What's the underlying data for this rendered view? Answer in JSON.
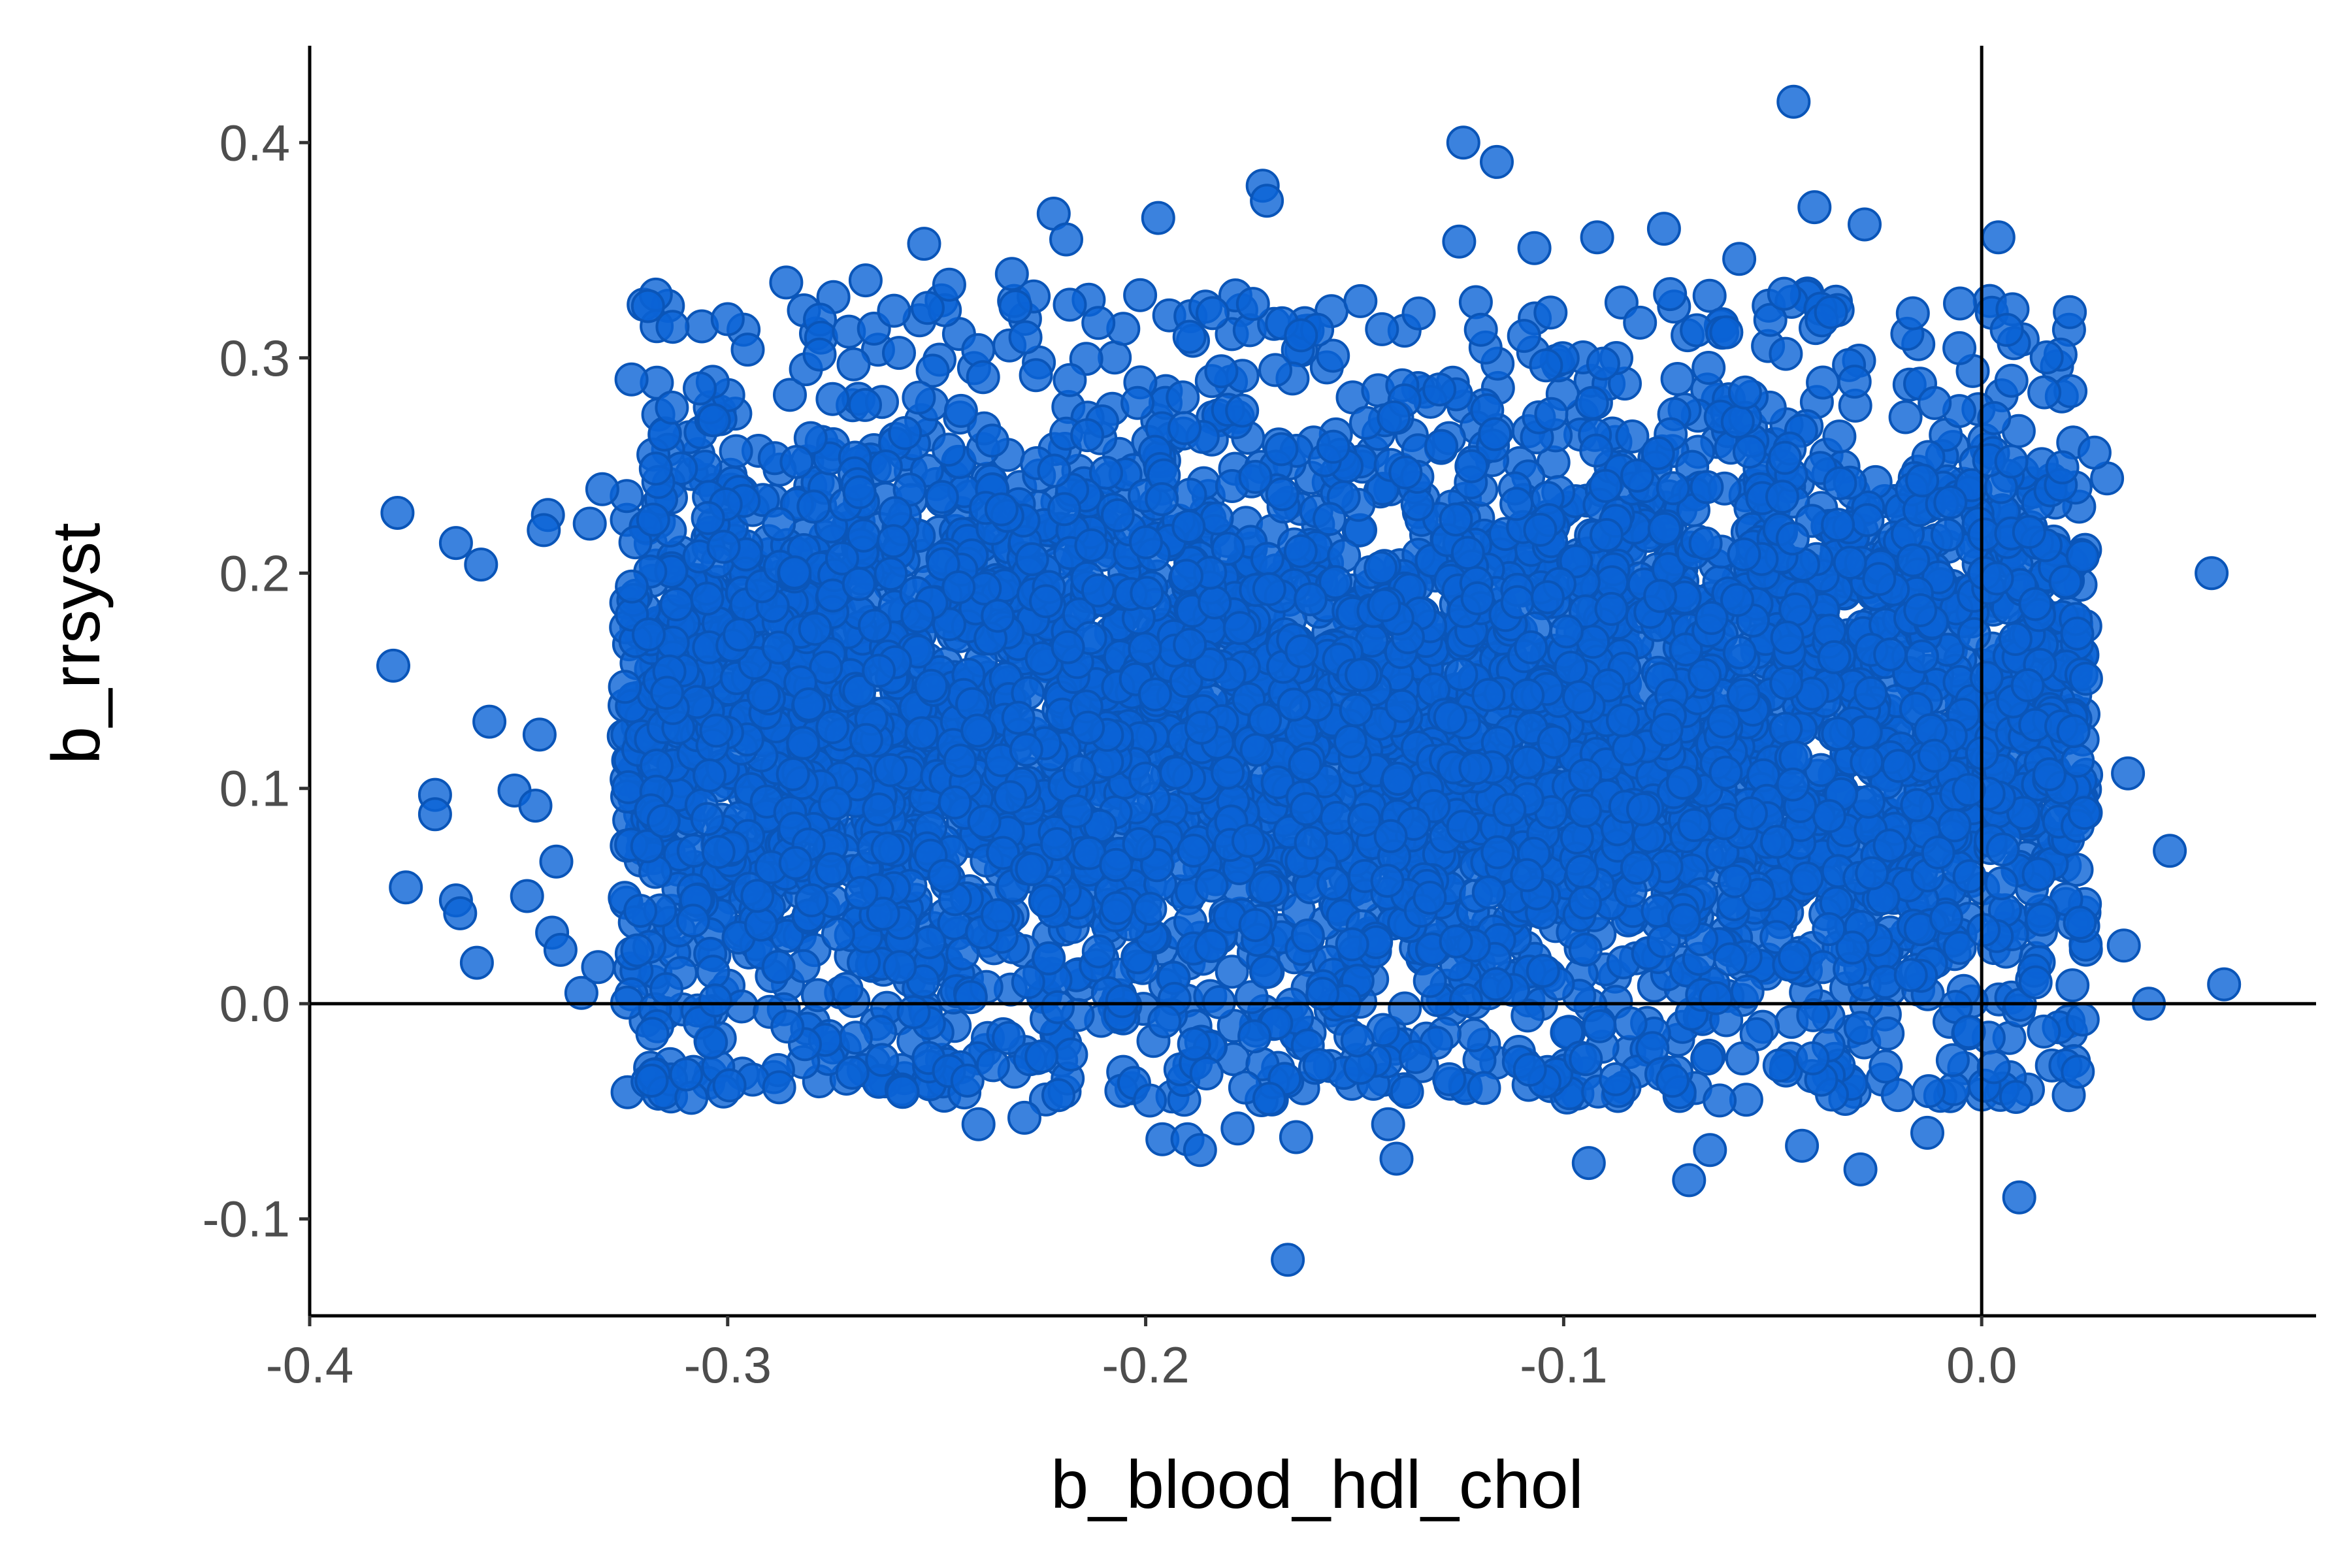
{
  "chart_data": {
    "type": "scatter",
    "xlabel": "b_blood_hdl_chol",
    "ylabel": "b_rrsyst",
    "xlim": [
      -0.4,
      0.08
    ],
    "ylim": [
      -0.145,
      0.445
    ],
    "x_ticks": [
      -0.4,
      -0.3,
      -0.2,
      -0.1,
      0.0
    ],
    "x_tick_labels": [
      "-0.4",
      "-0.3",
      "-0.2",
      "-0.1",
      "0.0"
    ],
    "y_ticks": [
      -0.1,
      0.0,
      0.1,
      0.2,
      0.3,
      0.4
    ],
    "y_tick_labels": [
      "-0.1",
      "0.0",
      "0.1",
      "0.2",
      "0.3",
      "0.4"
    ],
    "reference_lines": {
      "x": 0.0,
      "y": 0.0
    },
    "grid": false,
    "legend": "none",
    "colors": {
      "point_fill": "#0a63d6",
      "point_stroke": "#0a55b8",
      "axis": "#000000"
    },
    "cloud": {
      "n_points": 5000,
      "x_range": [
        -0.325,
        0.025
      ],
      "x_mean": -0.13,
      "y_mean": 0.13,
      "y_sd": 0.085,
      "y_range": [
        -0.045,
        0.33
      ]
    },
    "points": [
      {
        "x": -0.045,
        "y": 0.419
      },
      {
        "x": -0.124,
        "y": 0.4
      },
      {
        "x": -0.116,
        "y": 0.391
      },
      {
        "x": -0.172,
        "y": 0.38
      },
      {
        "x": -0.171,
        "y": 0.373
      },
      {
        "x": -0.04,
        "y": 0.37
      },
      {
        "x": -0.197,
        "y": 0.365
      },
      {
        "x": -0.222,
        "y": 0.367
      },
      {
        "x": -0.028,
        "y": 0.362
      },
      {
        "x": -0.076,
        "y": 0.36
      },
      {
        "x": -0.092,
        "y": 0.356
      },
      {
        "x": -0.219,
        "y": 0.355
      },
      {
        "x": -0.125,
        "y": 0.354
      },
      {
        "x": 0.004,
        "y": 0.356
      },
      {
        "x": -0.253,
        "y": 0.353
      },
      {
        "x": -0.107,
        "y": 0.351
      },
      {
        "x": -0.058,
        "y": 0.346
      },
      {
        "x": -0.286,
        "y": 0.335
      },
      {
        "x": -0.267,
        "y": 0.336
      },
      {
        "x": -0.247,
        "y": 0.334
      },
      {
        "x": -0.232,
        "y": 0.339
      },
      {
        "x": -0.3,
        "y": 0.318
      },
      {
        "x": -0.323,
        "y": 0.29
      },
      {
        "x": -0.379,
        "y": 0.228
      },
      {
        "x": -0.365,
        "y": 0.214
      },
      {
        "x": -0.359,
        "y": 0.204
      },
      {
        "x": -0.343,
        "y": 0.227
      },
      {
        "x": -0.344,
        "y": 0.22
      },
      {
        "x": -0.333,
        "y": 0.223
      },
      {
        "x": -0.33,
        "y": 0.239
      },
      {
        "x": -0.38,
        "y": 0.157
      },
      {
        "x": -0.357,
        "y": 0.131
      },
      {
        "x": -0.345,
        "y": 0.125
      },
      {
        "x": -0.351,
        "y": 0.099
      },
      {
        "x": -0.37,
        "y": 0.097
      },
      {
        "x": -0.37,
        "y": 0.088
      },
      {
        "x": -0.346,
        "y": 0.092
      },
      {
        "x": -0.377,
        "y": 0.054
      },
      {
        "x": -0.365,
        "y": 0.048
      },
      {
        "x": -0.364,
        "y": 0.042
      },
      {
        "x": -0.348,
        "y": 0.05
      },
      {
        "x": -0.341,
        "y": 0.066
      },
      {
        "x": -0.36,
        "y": 0.019
      },
      {
        "x": -0.342,
        "y": 0.033
      },
      {
        "x": -0.34,
        "y": 0.025
      },
      {
        "x": -0.335,
        "y": 0.005
      },
      {
        "x": -0.331,
        "y": 0.017
      },
      {
        "x": -0.318,
        "y": -0.014
      },
      {
        "x": -0.304,
        "y": -0.018
      },
      {
        "x": -0.24,
        "y": -0.056
      },
      {
        "x": -0.229,
        "y": -0.053
      },
      {
        "x": -0.199,
        "y": -0.045
      },
      {
        "x": -0.196,
        "y": -0.063
      },
      {
        "x": -0.19,
        "y": -0.063
      },
      {
        "x": -0.187,
        "y": -0.068
      },
      {
        "x": -0.178,
        "y": -0.058
      },
      {
        "x": -0.164,
        "y": -0.062
      },
      {
        "x": -0.166,
        "y": -0.119
      },
      {
        "x": -0.142,
        "y": -0.056
      },
      {
        "x": -0.14,
        "y": -0.072
      },
      {
        "x": -0.094,
        "y": -0.074
      },
      {
        "x": -0.07,
        "y": -0.082
      },
      {
        "x": -0.065,
        "y": -0.068
      },
      {
        "x": -0.043,
        "y": -0.066
      },
      {
        "x": -0.029,
        "y": -0.077
      },
      {
        "x": -0.013,
        "y": -0.06
      },
      {
        "x": 0.009,
        "y": -0.09
      },
      {
        "x": 0.04,
        "y": 0.0
      },
      {
        "x": 0.058,
        "y": 0.009
      },
      {
        "x": 0.045,
        "y": 0.071
      },
      {
        "x": 0.055,
        "y": 0.2
      },
      {
        "x": 0.035,
        "y": 0.107
      },
      {
        "x": 0.034,
        "y": 0.027
      },
      {
        "x": 0.03,
        "y": 0.244
      },
      {
        "x": 0.027,
        "y": 0.256
      },
      {
        "x": 0.015,
        "y": 0.284
      },
      {
        "x": 0.006,
        "y": 0.313
      }
    ]
  }
}
